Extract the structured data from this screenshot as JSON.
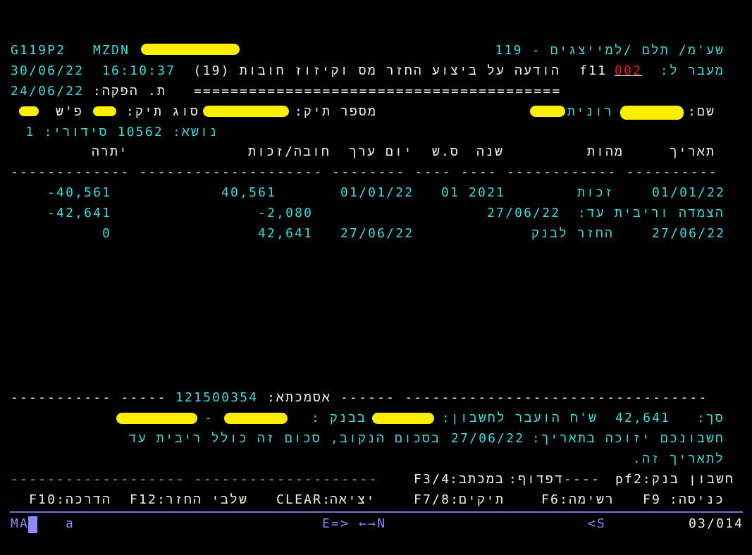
{
  "colors": {
    "background": "#000000",
    "field_cyan": "#3fdcdc",
    "label_white": "#f2f2f2",
    "error_red": "#e52222",
    "status": "#8b8bff",
    "redaction": "#ffee00"
  },
  "header": {
    "program_id": "G119P2",
    "system": "MZDN",
    "screen_title": "שע'מ/ תלם /למייצגים - 119",
    "date": "30/06/22",
    "time": "16:10:37",
    "goto_label": "מעבר ל:",
    "goto_value": "002",
    "function_key": "f11",
    "message_title": "הודעה על ביצוע החזר מס וקיזוז חובות (19)",
    "issue_date": "24/06/22",
    "issue_date_label": "ת. הפקה:",
    "separator": "========================================"
  },
  "taxpayer": {
    "name_label": "שם:",
    "first_name": "רונית",
    "file_number_label": "מספר תיק:",
    "file_type_label": "סוג תיק:",
    "ps_label": "פ'ש",
    "subject_line": "נושא: 10562 סידורי: 1"
  },
  "table": {
    "headers": {
      "date": "תאריך",
      "nature": "מהות",
      "year": "שנה",
      "ss": "ס.ש",
      "value_date": "יום ערך",
      "debit_credit": "חובה/זכות",
      "balance": "יתרה"
    },
    "divider": "------------- -------------------- -------- ---- ---- ------------ ----------",
    "rows": [
      {
        "date": "01/01/22",
        "nature": "זכות",
        "year": "2021",
        "ss": "01",
        "value_date": "01/01/22",
        "amount": "40,561",
        "balance": "-40,561"
      },
      {
        "label": "הצמדה וריבית עד:",
        "date": "27/06/22",
        "amount": "-2,080",
        "balance": "-42,641"
      },
      {
        "date": "27/06/22",
        "nature": "החזר לבנק",
        "value_date": "27/06/22",
        "amount": "42,641",
        "balance": "0"
      }
    ]
  },
  "reference": {
    "dashes_left": "----------- -----",
    "number": "121500354",
    "label": "אסמכתא:",
    "dashes_right": "------ ---------------------------------"
  },
  "transfer": {
    "total_label": "סך:",
    "total": "42,641",
    "transferred_label": "ש'ח הועבר לחשבון:",
    "bank_label": "בבנק :",
    "dash": "-",
    "credit_text_a": "חשבונכם יזוכה בתאריך:",
    "credit_date": "27/06/22",
    "credit_text_b": "בסכום הנקוב, סכום זה כולל ריבית עד",
    "credit_text_c": "לתאריך זה."
  },
  "nav": {
    "dashes": "------------------- --------------------",
    "bank_account": "חשבון בנק:",
    "pf2": "pf2",
    "arrows": "----",
    "paging": "דפדוף:",
    "letter": "במכתב:",
    "f34": "F3/4"
  },
  "fkeys": [
    {
      "key": "F9",
      "label": "כניסה:"
    },
    {
      "key": "F6:",
      "label": "רשימה"
    },
    {
      "key": "F7/8:",
      "label": "תיקים"
    },
    {
      "key": "CLEAR:",
      "label": "יציאה"
    },
    {
      "key": "F12:",
      "label": "שלבי החזר"
    },
    {
      "key": "F10:",
      "label": "הדרכה"
    }
  ],
  "status": {
    "mode": "MA",
    "session": "a",
    "direction": "E=> ←→N",
    "shift": "<S",
    "cursor_pos": "03/014"
  }
}
